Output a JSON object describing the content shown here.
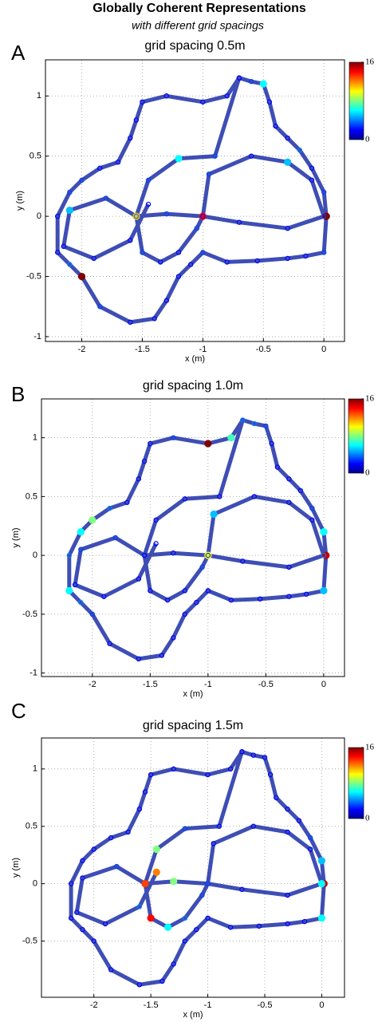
{
  "title": "Globally Coherent Representations",
  "subtitle": "with different grid spacings",
  "chart_data": [
    {
      "type": "scatter",
      "panel_label": "A",
      "title": "grid spacing 0.5m",
      "xlabel": "x (m)",
      "ylabel": "y (m)",
      "xlim": [
        -2.3,
        0.17
      ],
      "ylim": [
        -1.04,
        1.3
      ],
      "xticks": [
        -2,
        -1.5,
        -1,
        -0.5,
        0
      ],
      "yticks": [
        -1,
        -0.5,
        0,
        0.5,
        1
      ],
      "grid": true,
      "clim": [
        0,
        16
      ],
      "cticks": [
        0,
        16
      ],
      "x": [
        -0.7,
        -0.6,
        -0.5,
        -0.45,
        -0.4,
        -0.3,
        -0.2,
        -0.1,
        0,
        0.02,
        0,
        -0.15,
        -0.3,
        -0.55,
        -0.8,
        -1.0,
        -1.1,
        -1.2,
        -1.3,
        -1.4,
        -1.6,
        -1.85,
        -2.0,
        -2.1,
        -2.2,
        -2.2,
        -2.1,
        -2.0,
        -1.85,
        -1.7,
        -1.6,
        -1.55,
        -1.5,
        -1.3,
        -1.0,
        -0.8,
        -0.7,
        -0.9,
        -1.2,
        -1.45,
        -1.55,
        -1.5,
        -1.35,
        -1.2,
        -1.05,
        -1.0,
        -0.95,
        -0.6,
        -0.3,
        -0.1,
        0,
        -0.3,
        -0.7,
        -1.0,
        -1.3,
        -1.55,
        -1.8,
        -2.1,
        -2.15,
        -1.9,
        -1.6,
        -1.45
      ],
      "y": [
        1.15,
        1.12,
        1.1,
        0.95,
        0.75,
        0.65,
        0.55,
        0.4,
        0.2,
        0,
        -0.3,
        -0.33,
        -0.35,
        -0.37,
        -0.38,
        -0.3,
        -0.4,
        -0.5,
        -0.7,
        -0.85,
        -0.88,
        -0.75,
        -0.5,
        -0.4,
        -0.3,
        0,
        0.2,
        0.3,
        0.4,
        0.45,
        0.65,
        0.8,
        0.95,
        1.0,
        0.95,
        1.0,
        1.15,
        0.5,
        0.48,
        0.3,
        0,
        -0.3,
        -0.38,
        -0.3,
        -0.1,
        0,
        0.35,
        0.5,
        0.45,
        0.3,
        0,
        -0.1,
        -0.05,
        0,
        0.02,
        0,
        0.15,
        0.05,
        -0.25,
        -0.35,
        -0.2,
        0.1
      ],
      "values": [
        2,
        3,
        6,
        2,
        2,
        2,
        4,
        2,
        3,
        16,
        3,
        2,
        2,
        2,
        2,
        3,
        2,
        2,
        2,
        2,
        2,
        3,
        16,
        4,
        2,
        2,
        3,
        3,
        2,
        2,
        2,
        2,
        2,
        2,
        2,
        2,
        2,
        3,
        6,
        3,
        11,
        3,
        2,
        2,
        3,
        14,
        3,
        2,
        5,
        2,
        3,
        2,
        2,
        2,
        3,
        4,
        3,
        5,
        2,
        2,
        2,
        2
      ]
    },
    {
      "type": "scatter",
      "panel_label": "B",
      "title": "grid spacing 1.0m",
      "xlabel": "x (m)",
      "ylabel": "y (m)",
      "xlim": [
        -2.44,
        0.18
      ],
      "ylim": [
        -1.03,
        1.33
      ],
      "xticks": [
        -2,
        -1.5,
        -1,
        -0.5,
        0
      ],
      "yticks": [
        -1,
        -0.5,
        0,
        0.5,
        1
      ],
      "grid": true,
      "clim": [
        0,
        16
      ],
      "cticks": [
        0,
        16
      ],
      "x": [
        -0.7,
        -0.6,
        -0.5,
        -0.45,
        -0.4,
        -0.3,
        -0.2,
        -0.1,
        0,
        0.02,
        0,
        -0.15,
        -0.3,
        -0.55,
        -0.8,
        -1.0,
        -1.1,
        -1.2,
        -1.3,
        -1.4,
        -1.6,
        -1.85,
        -2.0,
        -2.1,
        -2.2,
        -2.2,
        -2.1,
        -2.0,
        -1.85,
        -1.7,
        -1.6,
        -1.55,
        -1.5,
        -1.3,
        -1.0,
        -0.8,
        -0.7,
        -0.9,
        -1.2,
        -1.45,
        -1.55,
        -1.5,
        -1.35,
        -1.2,
        -1.05,
        -1.0,
        -0.95,
        -0.6,
        -0.3,
        -0.1,
        0,
        -0.3,
        -0.7,
        -1.0,
        -1.3,
        -1.55,
        -1.8,
        -2.1,
        -2.15,
        -1.9,
        -1.6,
        -1.45
      ],
      "y": [
        1.15,
        1.12,
        1.1,
        0.95,
        0.75,
        0.65,
        0.55,
        0.4,
        0.2,
        0,
        -0.3,
        -0.33,
        -0.35,
        -0.37,
        -0.38,
        -0.3,
        -0.4,
        -0.5,
        -0.7,
        -0.85,
        -0.88,
        -0.75,
        -0.5,
        -0.4,
        -0.3,
        0,
        0.2,
        0.3,
        0.4,
        0.45,
        0.65,
        0.8,
        0.95,
        1.0,
        0.95,
        1.0,
        1.15,
        0.5,
        0.48,
        0.3,
        0,
        -0.3,
        -0.38,
        -0.3,
        -0.1,
        0,
        0.35,
        0.5,
        0.45,
        0.3,
        0,
        -0.1,
        -0.05,
        0,
        0.02,
        0,
        0.15,
        0.05,
        -0.25,
        -0.35,
        -0.2,
        0.1
      ],
      "values": [
        3,
        4,
        3,
        2,
        2,
        2,
        2,
        3,
        6,
        15,
        5,
        2,
        2,
        2,
        2,
        2,
        2,
        2,
        2,
        2,
        2,
        2,
        3,
        4,
        6,
        4,
        6,
        8,
        4,
        2,
        2,
        2,
        2,
        3,
        16,
        7,
        4,
        2,
        2,
        2,
        3,
        2,
        2,
        2,
        3,
        10,
        5,
        2,
        2,
        2,
        4,
        2,
        2,
        3,
        2,
        2,
        3,
        3,
        2,
        2,
        2,
        2
      ]
    },
    {
      "type": "scatter",
      "panel_label": "C",
      "title": "grid spacing 1.5m",
      "xlabel": "x (m)",
      "ylabel": "y (m)",
      "xlim": [
        -2.46,
        0.2
      ],
      "ylim": [
        -0.99,
        1.27
      ],
      "xticks": [
        -2,
        -1.5,
        -1,
        -0.5,
        0
      ],
      "yticks": [
        -0.5,
        0,
        0.5,
        1
      ],
      "grid": true,
      "clim": [
        0,
        16
      ],
      "cticks": [
        0,
        16
      ],
      "x": [
        -0.7,
        -0.6,
        -0.5,
        -0.45,
        -0.4,
        -0.3,
        -0.2,
        -0.1,
        0,
        0.02,
        0,
        -0.15,
        -0.3,
        -0.55,
        -0.8,
        -1.0,
        -1.1,
        -1.2,
        -1.3,
        -1.4,
        -1.6,
        -1.85,
        -2.0,
        -2.1,
        -2.2,
        -2.2,
        -2.1,
        -2.0,
        -1.85,
        -1.7,
        -1.6,
        -1.55,
        -1.5,
        -1.3,
        -1.0,
        -0.8,
        -0.7,
        -0.9,
        -1.2,
        -1.45,
        -1.55,
        -1.5,
        -1.35,
        -1.2,
        -1.05,
        -1.0,
        -0.95,
        -0.6,
        -0.3,
        -0.1,
        0,
        -0.3,
        -0.7,
        -1.0,
        -1.3,
        -1.55,
        -1.8,
        -2.1,
        -2.15,
        -1.9,
        -1.6,
        -1.45
      ],
      "y": [
        1.15,
        1.12,
        1.1,
        0.95,
        0.75,
        0.65,
        0.55,
        0.4,
        0.2,
        0,
        -0.3,
        -0.33,
        -0.35,
        -0.37,
        -0.38,
        -0.3,
        -0.4,
        -0.5,
        -0.7,
        -0.85,
        -0.88,
        -0.75,
        -0.5,
        -0.4,
        -0.3,
        0,
        0.2,
        0.3,
        0.4,
        0.45,
        0.65,
        0.8,
        0.95,
        1.0,
        0.95,
        1.0,
        1.15,
        0.5,
        0.48,
        0.3,
        0,
        -0.3,
        -0.38,
        -0.3,
        -0.1,
        0,
        0.35,
        0.5,
        0.45,
        0.3,
        0,
        -0.1,
        -0.05,
        0,
        0.02,
        0,
        0.15,
        0.05,
        -0.25,
        -0.35,
        -0.2,
        0.1
      ],
      "values": [
        2,
        2,
        2,
        2,
        2,
        2,
        2,
        3,
        5,
        15,
        6,
        2,
        2,
        2,
        2,
        2,
        2,
        2,
        2,
        2,
        2,
        2,
        2,
        2,
        2,
        2,
        2,
        2,
        2,
        2,
        2,
        2,
        2,
        2,
        2,
        2,
        2,
        2,
        3,
        8,
        16,
        14,
        6,
        4,
        3,
        3,
        2,
        2,
        2,
        2,
        6,
        2,
        2,
        3,
        8,
        13,
        3,
        2,
        2,
        2,
        4,
        12
      ]
    }
  ]
}
